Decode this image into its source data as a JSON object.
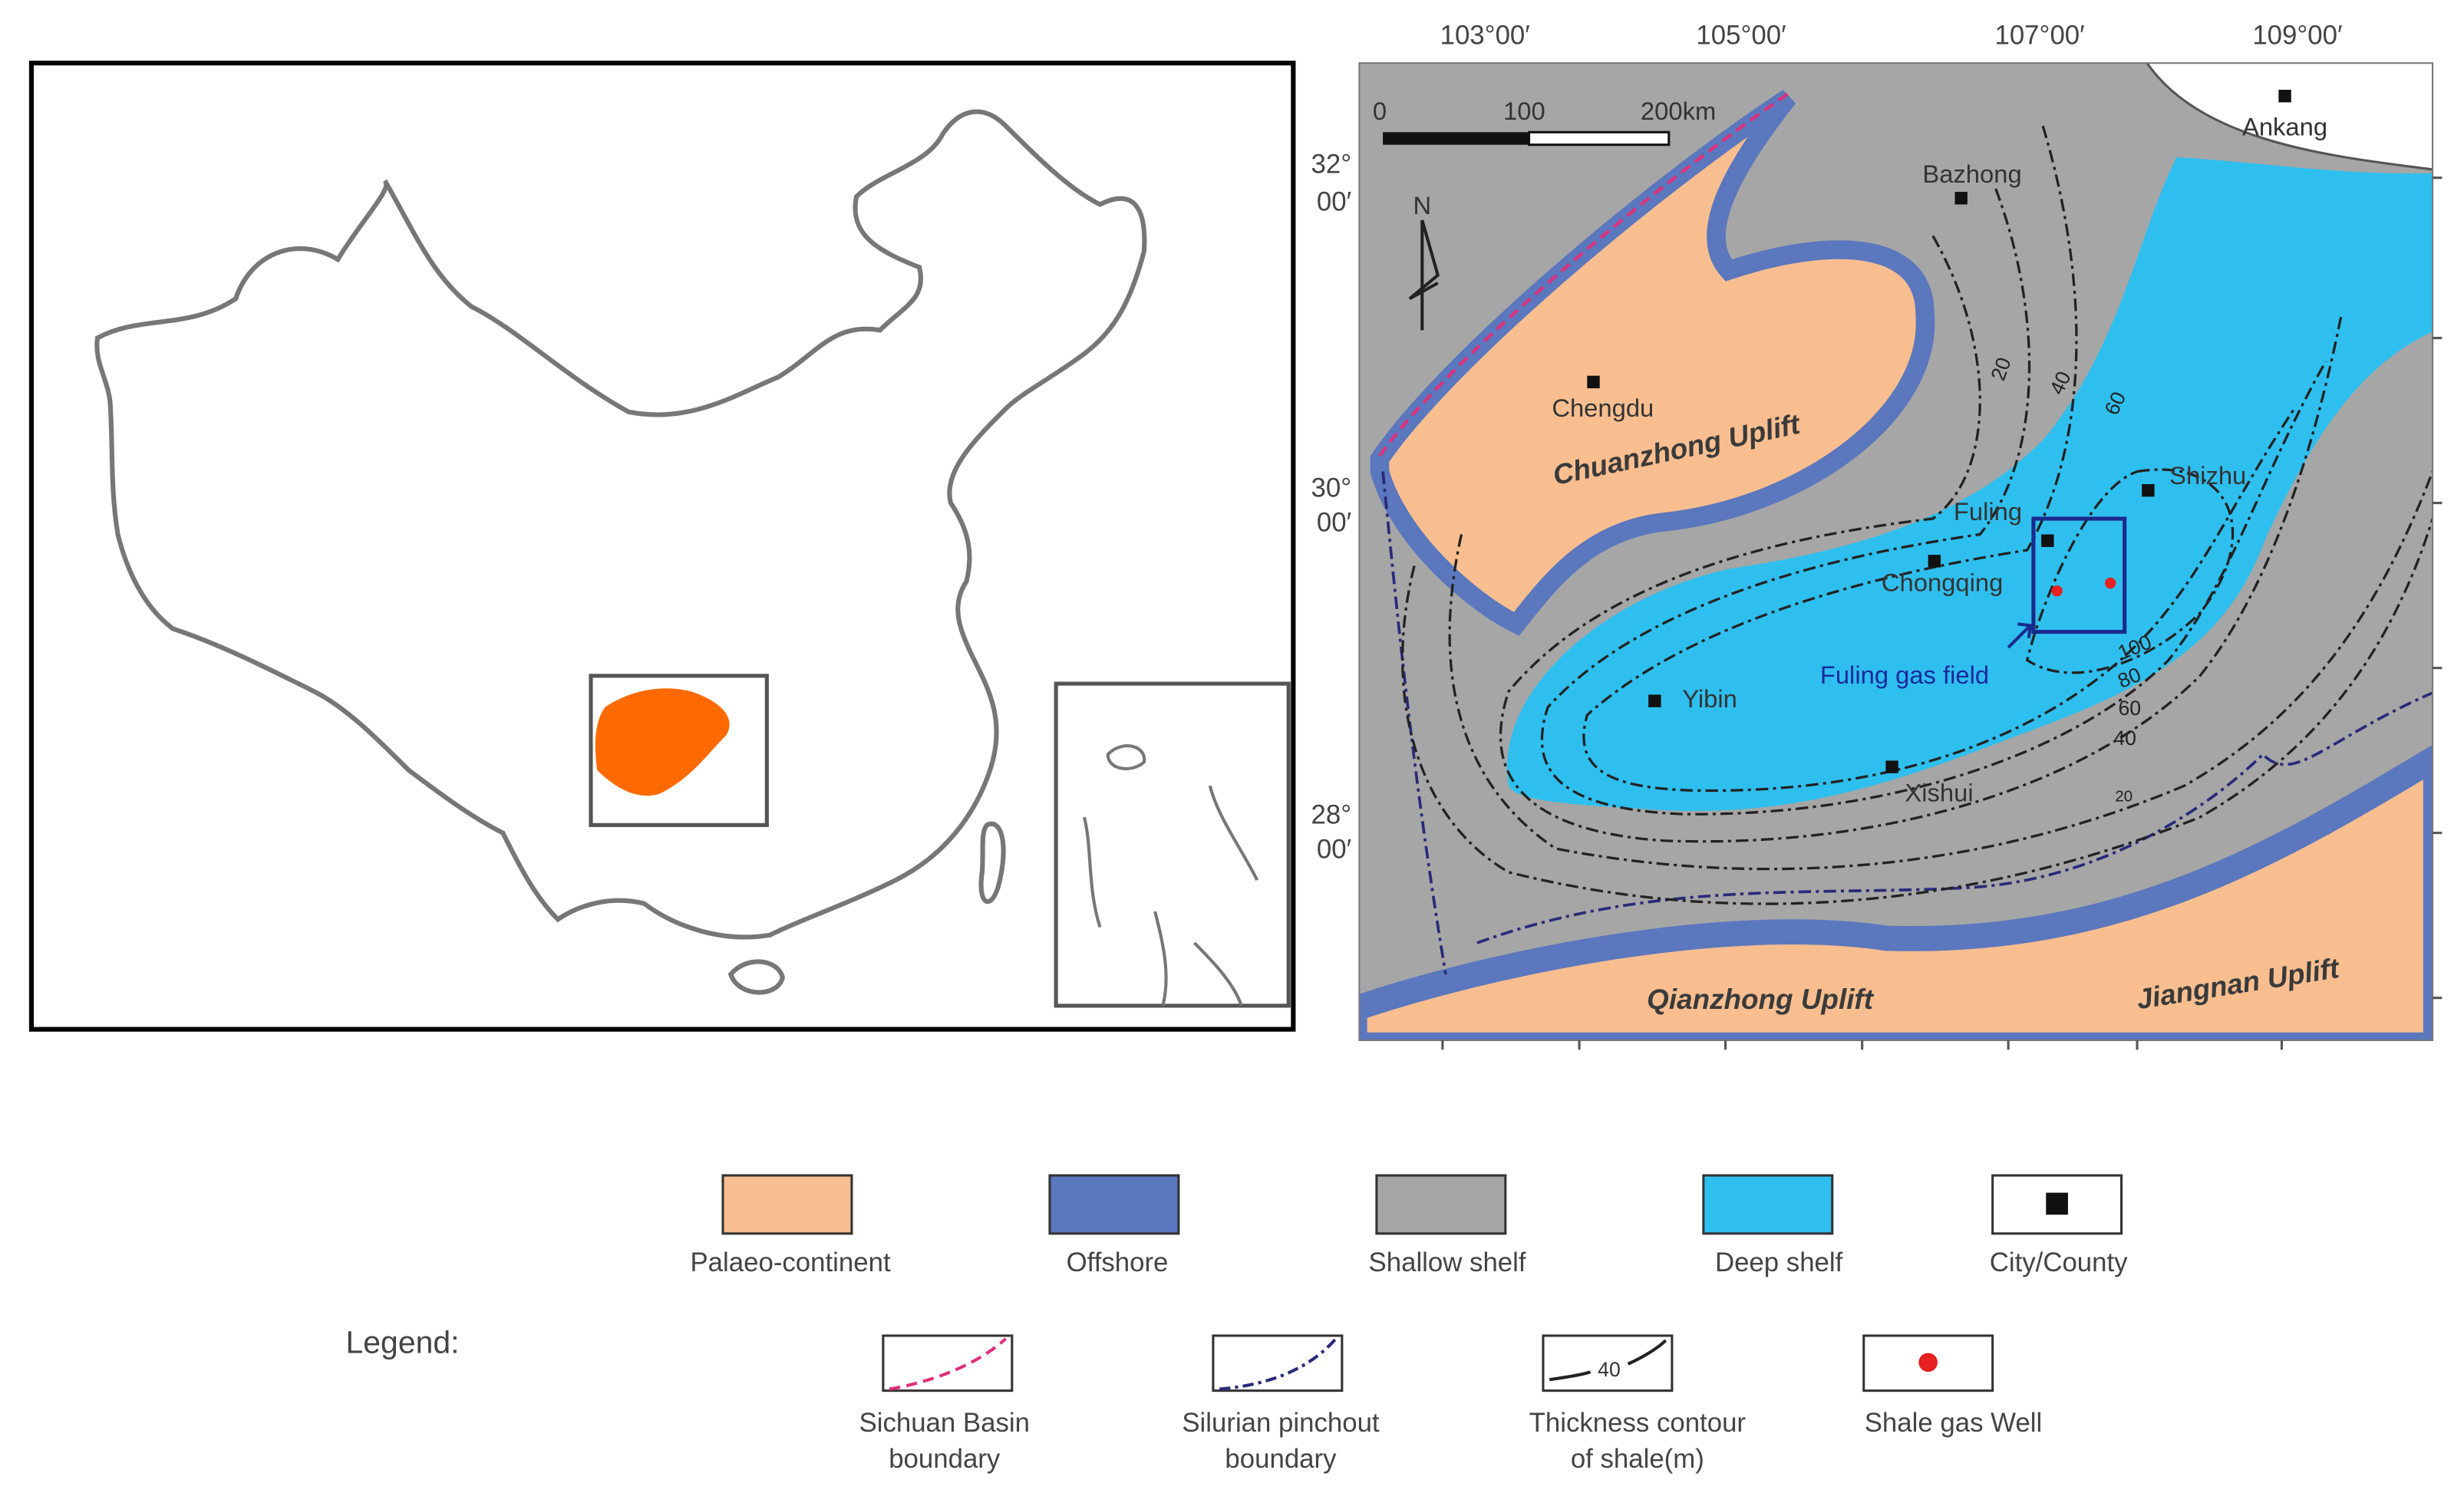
{
  "study_map": {
    "longitude_labels": [
      "103°00′",
      "105°00′",
      "107°00′",
      "109°00′"
    ],
    "latitude_labels": [
      [
        "32°",
        "00′"
      ],
      [
        "30°",
        "00′"
      ],
      [
        "28°",
        "00′"
      ]
    ],
    "scale_bar": [
      "0",
      "100",
      "200km"
    ],
    "north": "N",
    "cities": [
      "Bazhong",
      "Chengdu",
      "Fuling",
      "Chongqing",
      "Shizhu",
      "Yibin",
      "Xishui",
      "Ankang"
    ],
    "regions": [
      "Chuanzhong Uplift",
      "Qianzhong Uplift",
      "Jiangnan Uplift"
    ],
    "gas_field": "Fuling gas field",
    "contour_labels": [
      "20",
      "40",
      "60",
      "100",
      "80",
      "60",
      "40",
      "20"
    ]
  },
  "legend": {
    "title": "Legend:",
    "items": [
      {
        "label": [
          "Palaeo-continent"
        ]
      },
      {
        "label": [
          "Offshore"
        ]
      },
      {
        "label": [
          "Shallow shelf"
        ]
      },
      {
        "label": [
          "Deep shelf"
        ]
      },
      {
        "label": [
          "City/County"
        ]
      },
      {
        "label": [
          "Sichuan Basin",
          "boundary"
        ]
      },
      {
        "label": [
          "Silurian pinchout",
          "boundary"
        ]
      },
      {
        "label": [
          "Thickness contour",
          "of shale(m)"
        ]
      },
      {
        "label": [
          "Shale gas Well"
        ]
      }
    ]
  }
}
